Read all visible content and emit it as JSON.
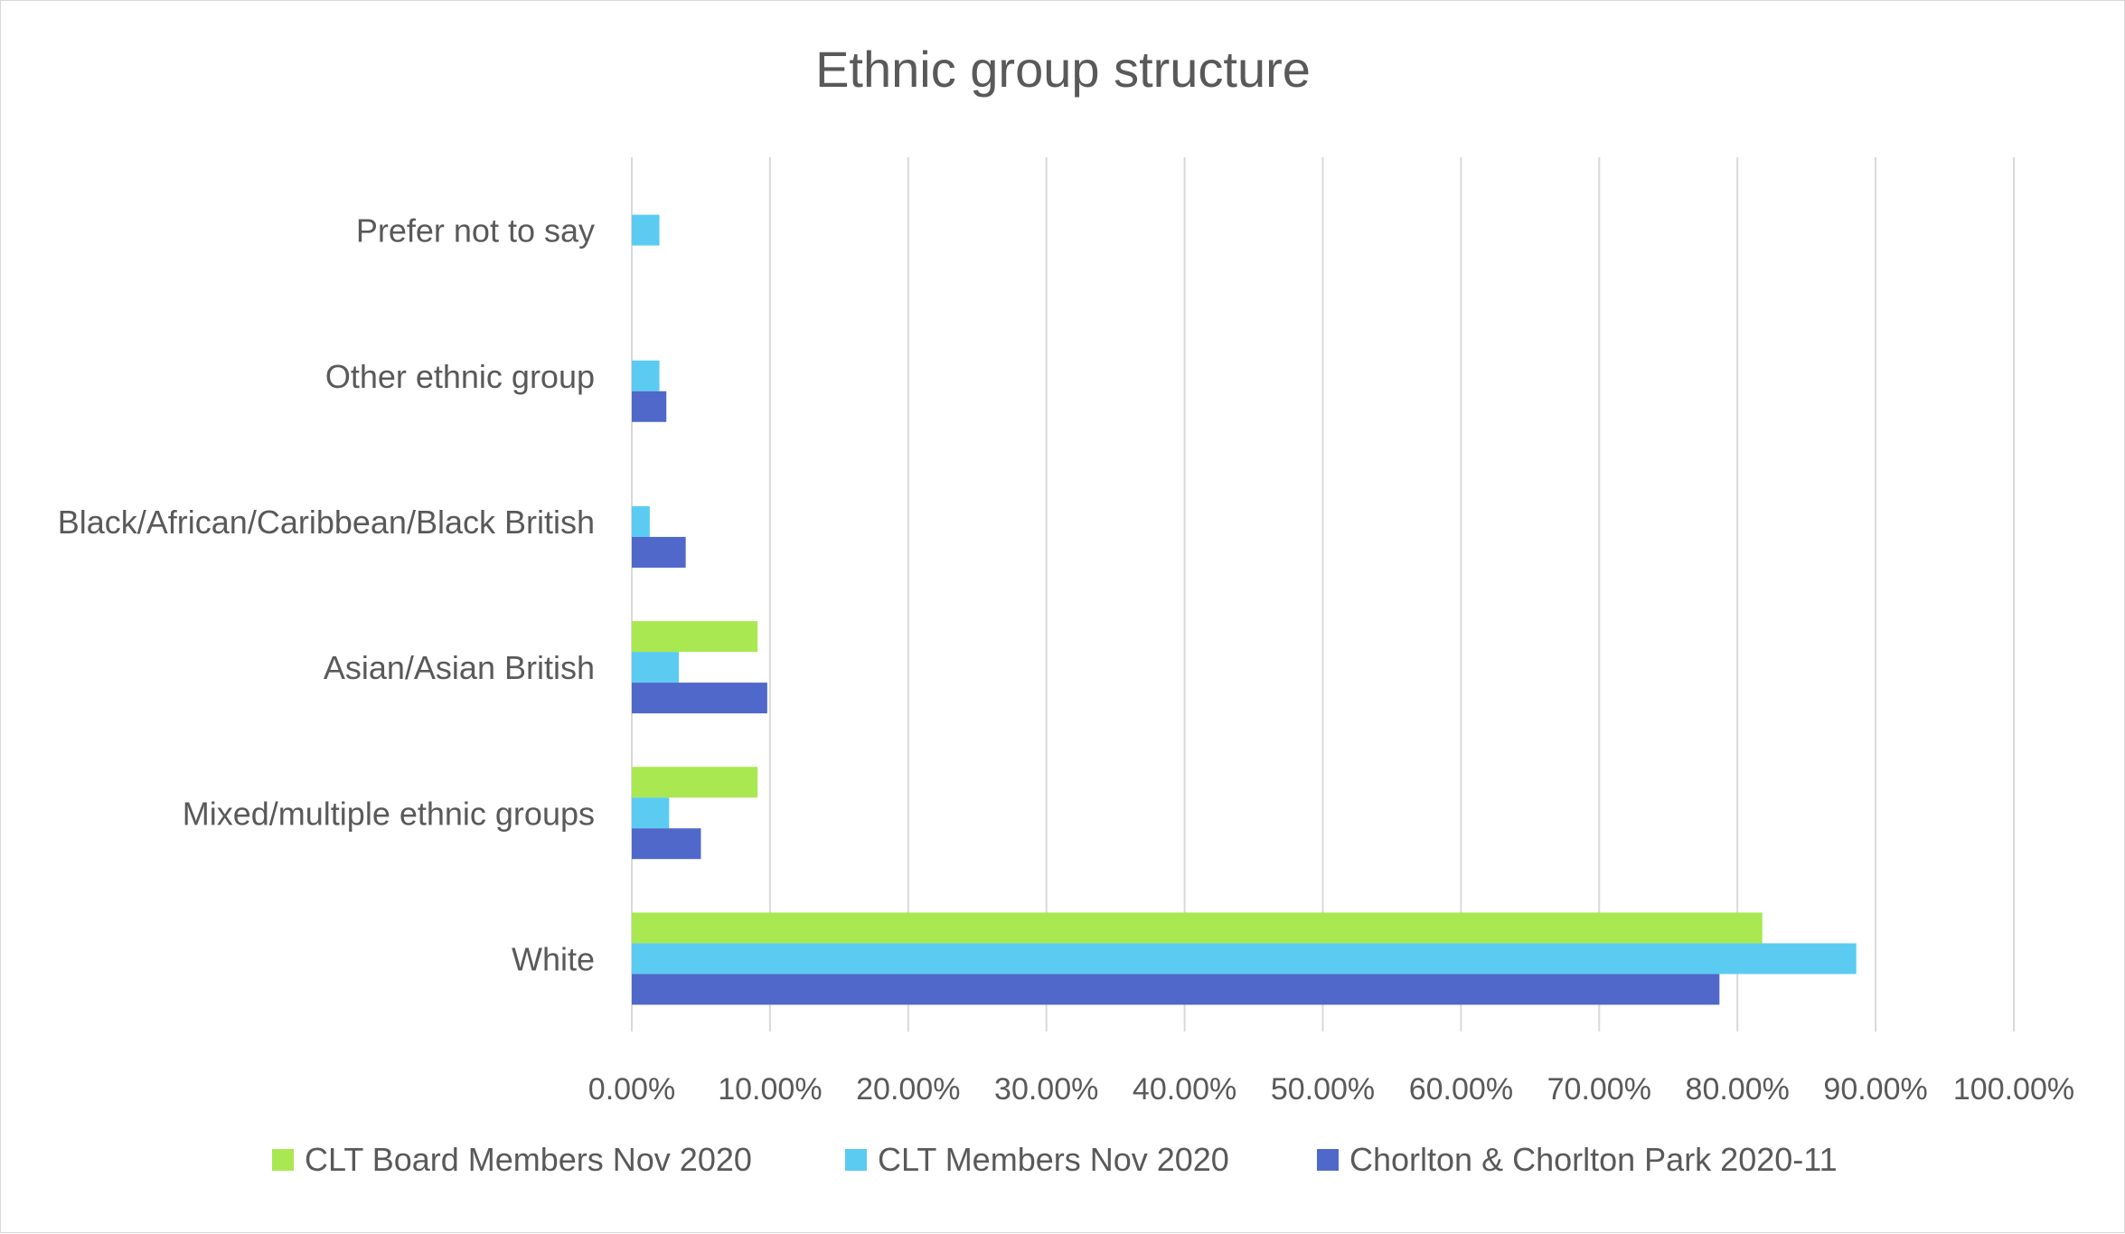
{
  "chart_data": {
    "type": "bar",
    "orientation": "horizontal",
    "title": "Ethnic group structure",
    "xlabel": "",
    "ylabel": "",
    "xlim": [
      0,
      1.0
    ],
    "tick_format": "percent_2dp",
    "x_ticks": [
      "0.00%",
      "10.00%",
      "20.00%",
      "30.00%",
      "40.00%",
      "50.00%",
      "60.00%",
      "70.00%",
      "80.00%",
      "90.00%",
      "100.00%"
    ],
    "categories": [
      "White",
      "Mixed/multiple ethnic groups",
      "Asian/Asian British",
      "Black/African/Caribbean/Black British",
      "Other ethnic group",
      "Prefer not to say"
    ],
    "series": [
      {
        "name": "CLT Board Members Nov 2020",
        "color": "#a9e851",
        "values": [
          0.818,
          0.091,
          0.091,
          0,
          0,
          0
        ]
      },
      {
        "name": "CLT Members Nov 2020",
        "color": "#5bcbf2",
        "values": [
          0.886,
          0.027,
          0.034,
          0.013,
          0.02,
          0.02
        ]
      },
      {
        "name": "Chorlton & Chorlton Park 2020-11",
        "color": "#4f68c9",
        "values": [
          0.787,
          0.05,
          0.098,
          0.039,
          0.025,
          0
        ]
      }
    ],
    "grid": true,
    "legend_position": "bottom"
  }
}
